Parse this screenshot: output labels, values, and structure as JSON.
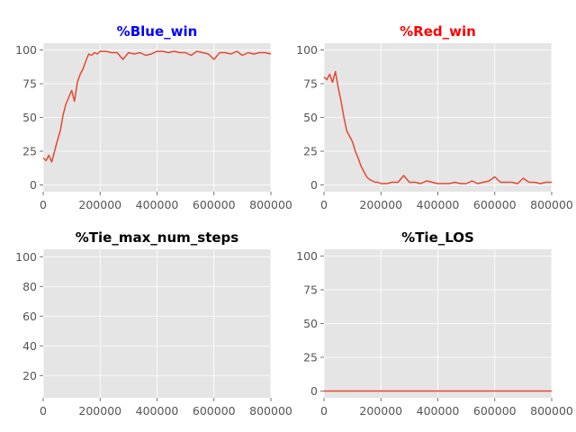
{
  "chart_data": [
    {
      "type": "line",
      "title": "%Blue_win",
      "title_color": "#0000ff",
      "xlim": [
        0,
        800000
      ],
      "ylim": [
        -5,
        105
      ],
      "xticks": [
        0,
        200000,
        400000,
        600000,
        800000
      ],
      "yticks": [
        0,
        25,
        50,
        75,
        100
      ],
      "grid": true,
      "series": [
        {
          "color": "#e24a33",
          "x": [
            0,
            10000,
            20000,
            30000,
            40000,
            50000,
            60000,
            70000,
            80000,
            90000,
            100000,
            110000,
            120000,
            130000,
            140000,
            150000,
            160000,
            170000,
            180000,
            190000,
            200000,
            220000,
            240000,
            260000,
            280000,
            300000,
            320000,
            340000,
            360000,
            380000,
            400000,
            420000,
            440000,
            460000,
            480000,
            500000,
            520000,
            540000,
            560000,
            580000,
            600000,
            620000,
            640000,
            660000,
            680000,
            700000,
            720000,
            740000,
            760000,
            780000,
            800000
          ],
          "y": [
            20,
            18,
            22,
            17,
            25,
            33,
            40,
            52,
            60,
            65,
            70,
            62,
            76,
            82,
            86,
            92,
            97,
            96,
            98,
            97,
            99,
            99,
            98,
            98,
            93,
            98,
            97,
            98,
            96,
            97,
            99,
            99,
            98,
            99,
            98,
            98,
            96,
            99,
            98,
            97,
            93,
            98,
            98,
            97,
            99,
            96,
            98,
            97,
            98,
            98,
            97
          ]
        }
      ]
    },
    {
      "type": "line",
      "title": "%Red_win",
      "title_color": "#ff0000",
      "xlim": [
        0,
        800000
      ],
      "ylim": [
        -5,
        105
      ],
      "xticks": [
        0,
        200000,
        400000,
        600000,
        800000
      ],
      "yticks": [
        0,
        25,
        50,
        75,
        100
      ],
      "grid": true,
      "series": [
        {
          "color": "#e24a33",
          "x": [
            0,
            10000,
            20000,
            30000,
            40000,
            50000,
            60000,
            70000,
            80000,
            90000,
            100000,
            110000,
            120000,
            130000,
            140000,
            150000,
            160000,
            170000,
            180000,
            190000,
            200000,
            220000,
            240000,
            260000,
            280000,
            300000,
            320000,
            340000,
            360000,
            380000,
            400000,
            420000,
            440000,
            460000,
            480000,
            500000,
            520000,
            540000,
            560000,
            580000,
            600000,
            620000,
            640000,
            660000,
            680000,
            700000,
            720000,
            740000,
            760000,
            780000,
            800000
          ],
          "y": [
            80,
            78,
            82,
            76,
            84,
            72,
            62,
            50,
            40,
            36,
            32,
            25,
            20,
            14,
            10,
            6,
            4,
            3,
            2,
            2,
            1,
            1,
            2,
            2,
            7,
            2,
            2,
            1,
            3,
            2,
            1,
            1,
            1,
            2,
            1,
            1,
            3,
            1,
            2,
            3,
            6,
            2,
            2,
            2,
            1,
            5,
            2,
            2,
            1,
            2,
            2
          ]
        }
      ]
    },
    {
      "type": "line",
      "title": "%Tie_max_num_steps",
      "title_color": "#000000",
      "xlim": [
        0,
        800000
      ],
      "ylim": [
        5,
        105
      ],
      "xticks": [
        0,
        200000,
        400000,
        600000,
        800000
      ],
      "yticks": [
        20,
        40,
        60,
        80,
        100
      ],
      "grid": true,
      "series": []
    },
    {
      "type": "line",
      "title": "%Tie_LOS",
      "title_color": "#000000",
      "xlim": [
        0,
        800000
      ],
      "ylim": [
        -5,
        105
      ],
      "xticks": [
        0,
        200000,
        400000,
        600000,
        800000
      ],
      "yticks": [
        0,
        25,
        50,
        75,
        100
      ],
      "grid": true,
      "series": [
        {
          "color": "#e24a33",
          "x": [
            0,
            800000
          ],
          "y": [
            0,
            0
          ]
        }
      ]
    }
  ]
}
